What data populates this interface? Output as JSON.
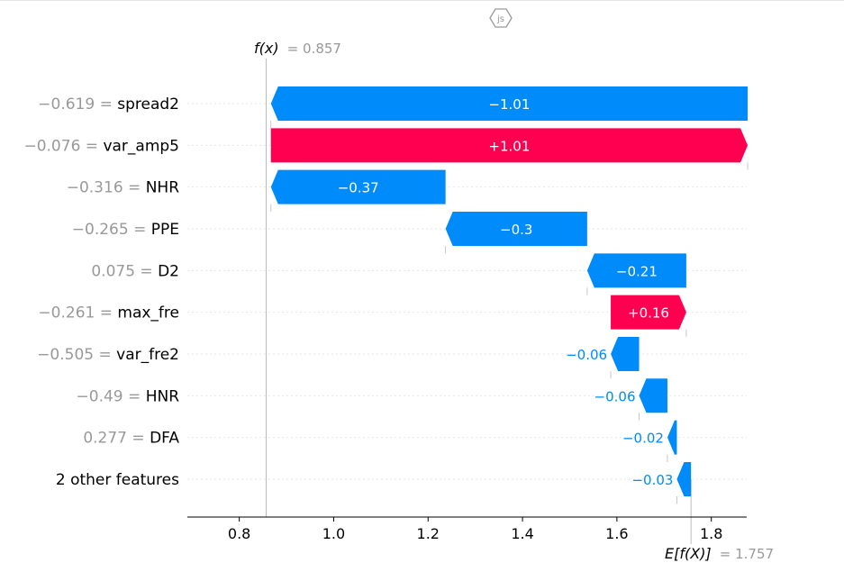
{
  "badge": {
    "label": "js",
    "icon": "js-hexagon-icon"
  },
  "colors": {
    "negative": "#008bfb",
    "positive": "#ff0051",
    "muted": "#999999",
    "axis": "#000000"
  },
  "chart_data": {
    "type": "waterfall",
    "fx_symbol": "f(x)",
    "fx_value": "= 0.857",
    "ex_symbol": "E[f(X)]",
    "ex_value": "= 1.757",
    "base_value": 1.757,
    "final_value": 0.857,
    "xlim": [
      0.69,
      1.875
    ],
    "xticks": [
      0.8,
      1.0,
      1.2,
      1.4,
      1.6,
      1.8
    ],
    "xtick_labels": [
      "0.8",
      "1.0",
      "1.2",
      "1.4",
      "1.6",
      "1.8"
    ],
    "features": [
      {
        "value": "−0.619 =",
        "name": "spread2",
        "contribution": -1.01,
        "label": "−1.01"
      },
      {
        "value": "−0.076 =",
        "name": "var_amp5",
        "contribution": 1.01,
        "label": "+1.01"
      },
      {
        "value": "−0.316 =",
        "name": "NHR",
        "contribution": -0.37,
        "label": "−0.37"
      },
      {
        "value": "−0.265 =",
        "name": "PPE",
        "contribution": -0.3,
        "label": "−0.3"
      },
      {
        "value": "0.075 =",
        "name": "D2",
        "contribution": -0.21,
        "label": "−0.21"
      },
      {
        "value": "−0.261 =",
        "name": "max_fre",
        "contribution": 0.16,
        "label": "+0.16"
      },
      {
        "value": "−0.505 =",
        "name": "var_fre2",
        "contribution": -0.06,
        "label": "−0.06"
      },
      {
        "value": "−0.49 =",
        "name": "HNR",
        "contribution": -0.06,
        "label": "−0.06"
      },
      {
        "value": "0.277 =",
        "name": "DFA",
        "contribution": -0.02,
        "label": "−0.02"
      },
      {
        "value": "",
        "name": "2 other features",
        "contribution": -0.03,
        "label": "−0.03"
      }
    ]
  }
}
